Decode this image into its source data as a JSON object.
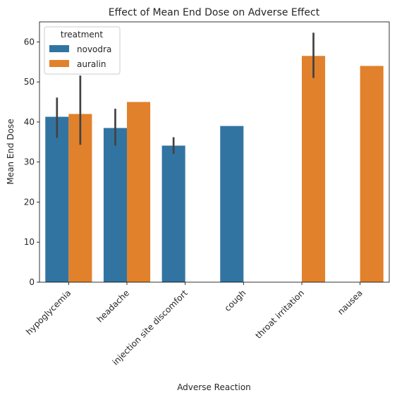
{
  "chart_data": {
    "type": "bar",
    "title": "Effect of Mean End Dose on Adverse Effect",
    "xlabel": "Adverse Reaction",
    "ylabel": "Mean End Dose",
    "ylim": [
      0,
      65
    ],
    "yticks": [
      0,
      10,
      20,
      30,
      40,
      50,
      60
    ],
    "categories": [
      "hypoglycemia",
      "headache",
      "injection site discomfort",
      "cough",
      "throat irritation",
      "nausea"
    ],
    "legend": {
      "title": "treatment",
      "placement": "upper-left"
    },
    "series": [
      {
        "name": "novodra",
        "color": "#3274a1",
        "values": [
          41.3,
          38.5,
          34.1,
          39.0,
          null,
          null
        ],
        "ci": [
          [
            36.0,
            46.1
          ],
          [
            34.1,
            43.3
          ],
          [
            32.0,
            36.2
          ],
          null,
          null,
          null
        ]
      },
      {
        "name": "auralin",
        "color": "#e1812c",
        "values": [
          42.0,
          45.0,
          null,
          null,
          56.5,
          54.0
        ],
        "ci": [
          [
            34.3,
            51.6
          ],
          null,
          null,
          null,
          [
            51.0,
            62.3
          ],
          null
        ]
      }
    ],
    "grid": false
  }
}
